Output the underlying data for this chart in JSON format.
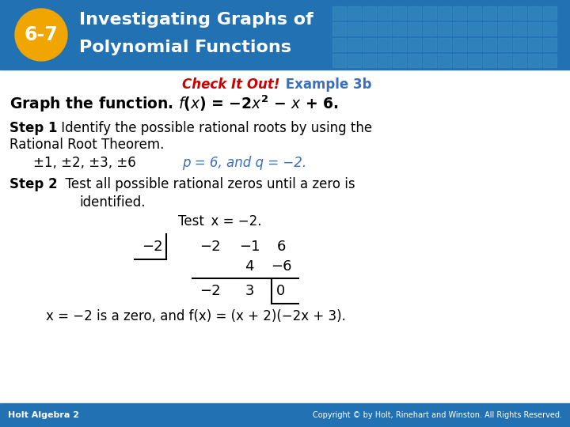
{
  "header_bg_color": "#2271b3",
  "header_text_color": "#ffffff",
  "badge_bg_color": "#f0a500",
  "badge_text": "6-7",
  "footer_bg_color": "#2271b3",
  "footer_left": "Holt Algebra 2",
  "footer_right": "Copyright © by Holt, Rinehart and Winston. All Rights Reserved.",
  "footer_text_color": "#ffffff",
  "body_bg_color": "#ffffff",
  "check_red": "Check It Out!",
  "check_blue": " Example 3b",
  "grid_color": "#3a8fc5"
}
